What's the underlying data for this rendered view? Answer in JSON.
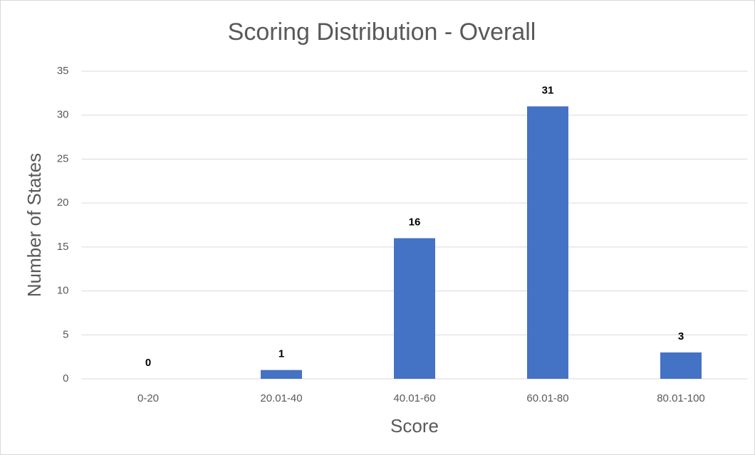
{
  "chart_data": {
    "type": "bar",
    "title": "Scoring Distribution - Overall",
    "x_label": "Score",
    "y_label": "Number of States",
    "categories": [
      "0-20",
      "20.01-40",
      "40.01-60",
      "60.01-80",
      "80.01-100"
    ],
    "values": [
      0,
      1,
      16,
      31,
      3
    ],
    "color": "#4472c4",
    "ylim": [
      0,
      35
    ],
    "yticks": [
      0,
      5,
      10,
      15,
      20,
      25,
      30,
      35
    ],
    "grid": true,
    "data_labels": true
  }
}
